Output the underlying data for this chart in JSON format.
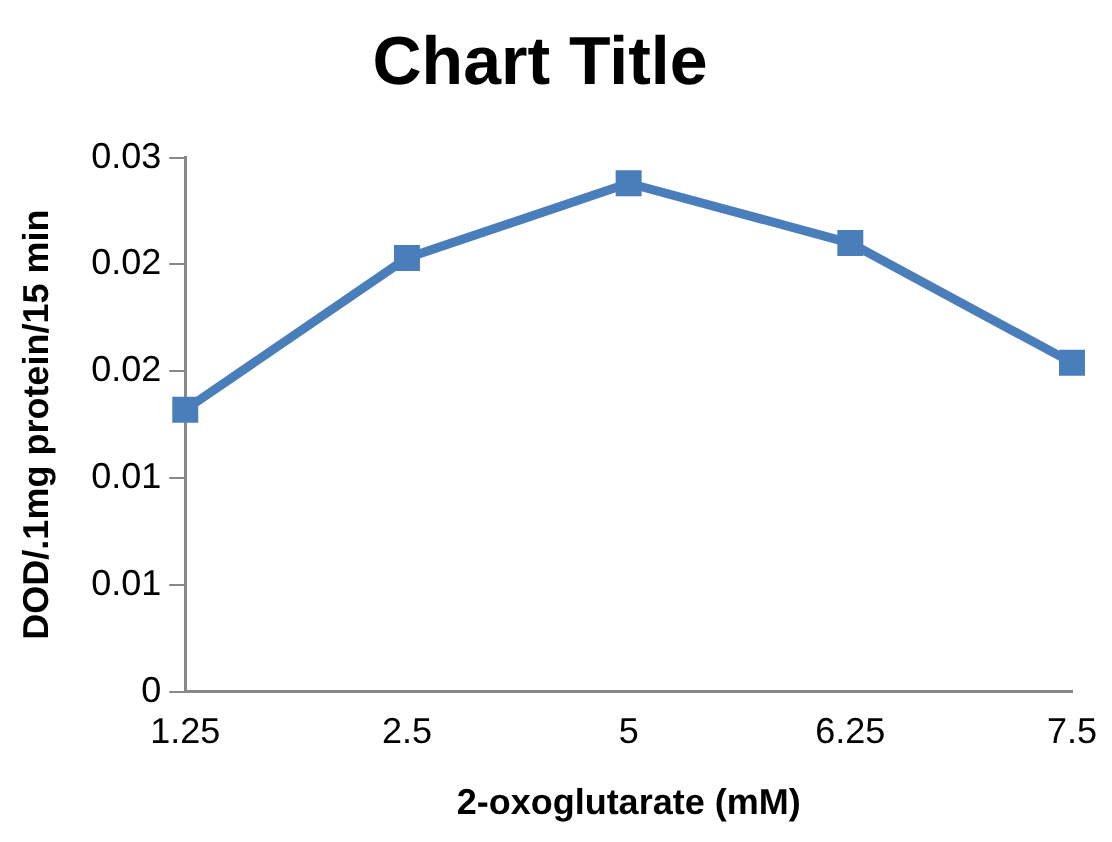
{
  "chart_data": {
    "type": "line",
    "title": "Chart Title",
    "xlabel": "2-oxoglutarate (mM)",
    "ylabel": "DOD/.1mg protein/15 min",
    "categories": [
      "1.25",
      "2.5",
      "5",
      "6.25",
      "7.5"
    ],
    "series": [
      {
        "color": "#4a7ebb",
        "values": [
          0.0132,
          0.0203,
          0.0238,
          0.021,
          0.0154
        ]
      }
    ],
    "ylim": [
      0,
      0.025
    ],
    "yticks": [
      0,
      {
        "value": 0.005,
        "label": "0.01"
      },
      {
        "value": 0.01,
        "label": "0.01"
      },
      {
        "value": 0.015,
        "label": "0.02"
      },
      {
        "value": 0.02,
        "label": "0.02"
      },
      {
        "value": 0.025,
        "label": "0.03"
      }
    ],
    "grid": false,
    "legend": false,
    "marker": "square",
    "line_style": "solid"
  }
}
